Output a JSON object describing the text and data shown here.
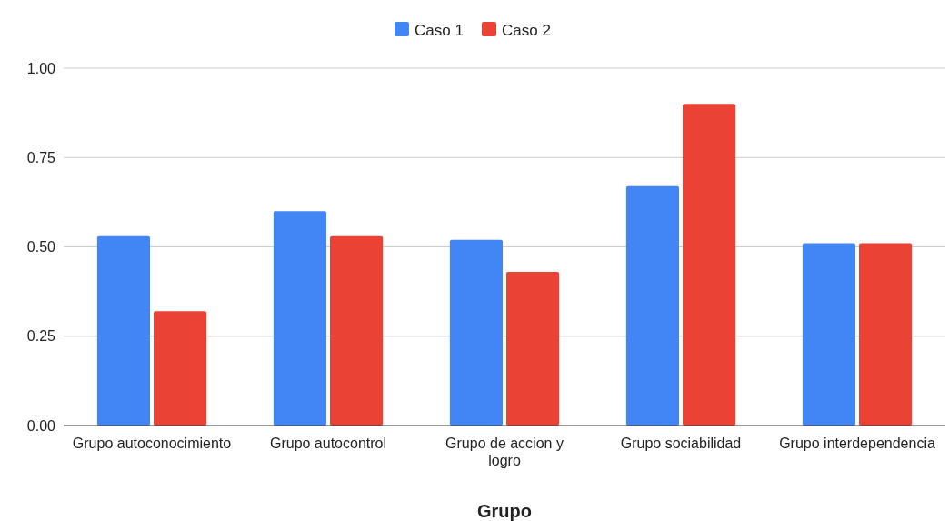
{
  "chart_data": {
    "type": "bar",
    "xlabel": "Grupo",
    "categories": [
      "Grupo autoconocimiento",
      "Grupo autocontrol",
      "Grupo de accion y logro",
      "Grupo sociabilidad",
      "Grupo interdependencia"
    ],
    "series": [
      {
        "name": "Caso 1",
        "color": "#4285f4",
        "values": [
          0.53,
          0.6,
          0.52,
          0.67,
          0.51
        ]
      },
      {
        "name": "Caso 2",
        "color": "#ea4335",
        "values": [
          0.32,
          0.53,
          0.43,
          0.9,
          0.51
        ]
      }
    ],
    "ylim": [
      0,
      1
    ],
    "yticks": [
      {
        "value": 0,
        "label": "0.00"
      },
      {
        "value": 0.25,
        "label": "0.25"
      },
      {
        "value": 0.5,
        "label": "0.50"
      },
      {
        "value": 0.75,
        "label": "0.75"
      },
      {
        "value": 1,
        "label": "1.00"
      }
    ],
    "grid": "y",
    "legend": "top"
  }
}
